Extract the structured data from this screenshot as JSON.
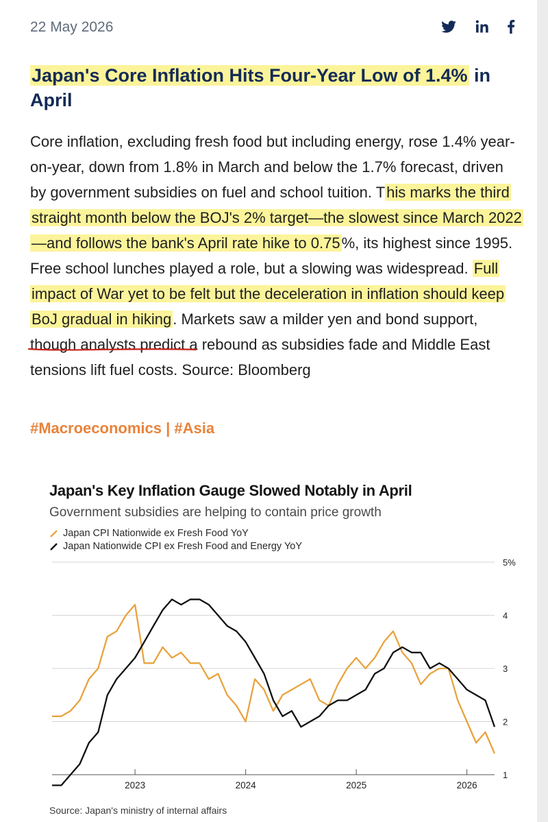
{
  "post": {
    "date": "22 May 2026",
    "share": {
      "twitter_icon": "twitter-icon",
      "linkedin_icon": "linkedin-icon",
      "facebook_icon": "facebook-icon"
    },
    "title": {
      "highlighted": "Japan's Core Inflation Hits Four-Year Low of 1.4%",
      "rest": " in April"
    },
    "body": {
      "part1": "Core inflation, excluding fresh food but including energy, rose 1.4% year-on-year, down from 1.8% in March and below the 1.7% forecast, driven by government subsidies on fuel and school tuition. T",
      "highlight1": "his marks the third straight month below the BOJ's 2% target—the slowest since March 2022—and follows the bank's April rate hike to 0.75",
      "part2": "%, its highest since 1995. Free school lunches played a role, but a slowing was widespread. ",
      "highlight2": "Full impact of War yet to be felt but the deceleration in inflation should keep BoJ gradual in hiking",
      "part3": ". Markets saw a milder yen and bond support, though analysts predict a rebound as subsidies fade and Middle East tensions lift fuel costs. Source: Bloomberg"
    },
    "hashtags": "#Macroeconomics | #Asia",
    "highlight_color": "#fbf49a",
    "accent_color": "#e8833a"
  },
  "chart_data": {
    "type": "line",
    "title": "Japan's Key Inflation Gauge Slowed Notably in April",
    "subtitle": "Government subsidies are helping to contain price growth",
    "source": "Source: Japan's ministry of internal affairs",
    "x_ticks": [
      "2023",
      "2024",
      "2025",
      "2026"
    ],
    "y_ticks": [
      "1",
      "2",
      "3",
      "4",
      "5%"
    ],
    "ylim": [
      1,
      5
    ],
    "grid": true,
    "series": [
      {
        "name": "Japan CPI Nationwide ex Fresh Food YoY",
        "color": "#e8a33d",
        "x": [
          "2022-04",
          "2022-05",
          "2022-06",
          "2022-07",
          "2022-08",
          "2022-09",
          "2022-10",
          "2022-11",
          "2022-12",
          "2023-01",
          "2023-02",
          "2023-03",
          "2023-04",
          "2023-05",
          "2023-06",
          "2023-07",
          "2023-08",
          "2023-09",
          "2023-10",
          "2023-11",
          "2023-12",
          "2024-01",
          "2024-02",
          "2024-03",
          "2024-04",
          "2024-05",
          "2024-06",
          "2024-07",
          "2024-08",
          "2024-09",
          "2024-10",
          "2024-11",
          "2024-12",
          "2025-01",
          "2025-02",
          "2025-03",
          "2025-04",
          "2025-05",
          "2025-06",
          "2025-07",
          "2025-08",
          "2025-09",
          "2025-10",
          "2025-11",
          "2025-12",
          "2026-01",
          "2026-02",
          "2026-03",
          "2026-04"
        ],
        "values": [
          2.1,
          2.1,
          2.2,
          2.4,
          2.8,
          3.0,
          3.6,
          3.7,
          4.0,
          4.2,
          3.1,
          3.1,
          3.4,
          3.2,
          3.3,
          3.1,
          3.1,
          2.8,
          2.9,
          2.5,
          2.3,
          2.0,
          2.8,
          2.6,
          2.2,
          2.5,
          2.6,
          2.7,
          2.8,
          2.4,
          2.3,
          2.7,
          3.0,
          3.2,
          3.0,
          3.2,
          3.5,
          3.7,
          3.3,
          3.1,
          2.7,
          2.9,
          3.0,
          3.0,
          2.4,
          2.0,
          1.6,
          1.8,
          1.4
        ]
      },
      {
        "name": "Japan Nationwide CPI ex Fresh Food and Energy YoY",
        "color": "#111111",
        "x": [
          "2022-04",
          "2022-05",
          "2022-06",
          "2022-07",
          "2022-08",
          "2022-09",
          "2022-10",
          "2022-11",
          "2022-12",
          "2023-01",
          "2023-02",
          "2023-03",
          "2023-04",
          "2023-05",
          "2023-06",
          "2023-07",
          "2023-08",
          "2023-09",
          "2023-10",
          "2023-11",
          "2023-12",
          "2024-01",
          "2024-02",
          "2024-03",
          "2024-04",
          "2024-05",
          "2024-06",
          "2024-07",
          "2024-08",
          "2024-09",
          "2024-10",
          "2024-11",
          "2024-12",
          "2025-01",
          "2025-02",
          "2025-03",
          "2025-04",
          "2025-05",
          "2025-06",
          "2025-07",
          "2025-08",
          "2025-09",
          "2025-10",
          "2025-11",
          "2025-12",
          "2026-01",
          "2026-02",
          "2026-03",
          "2026-04"
        ],
        "values": [
          0.8,
          0.8,
          1.0,
          1.2,
          1.6,
          1.8,
          2.5,
          2.8,
          3.0,
          3.2,
          3.5,
          3.8,
          4.1,
          4.3,
          4.2,
          4.3,
          4.3,
          4.2,
          4.0,
          3.8,
          3.7,
          3.5,
          3.2,
          2.9,
          2.4,
          2.1,
          2.2,
          1.9,
          2.0,
          2.1,
          2.3,
          2.4,
          2.4,
          2.5,
          2.6,
          2.9,
          3.0,
          3.3,
          3.4,
          3.3,
          3.3,
          3.0,
          3.1,
          3.0,
          2.8,
          2.6,
          2.5,
          2.4,
          1.9
        ]
      }
    ]
  }
}
